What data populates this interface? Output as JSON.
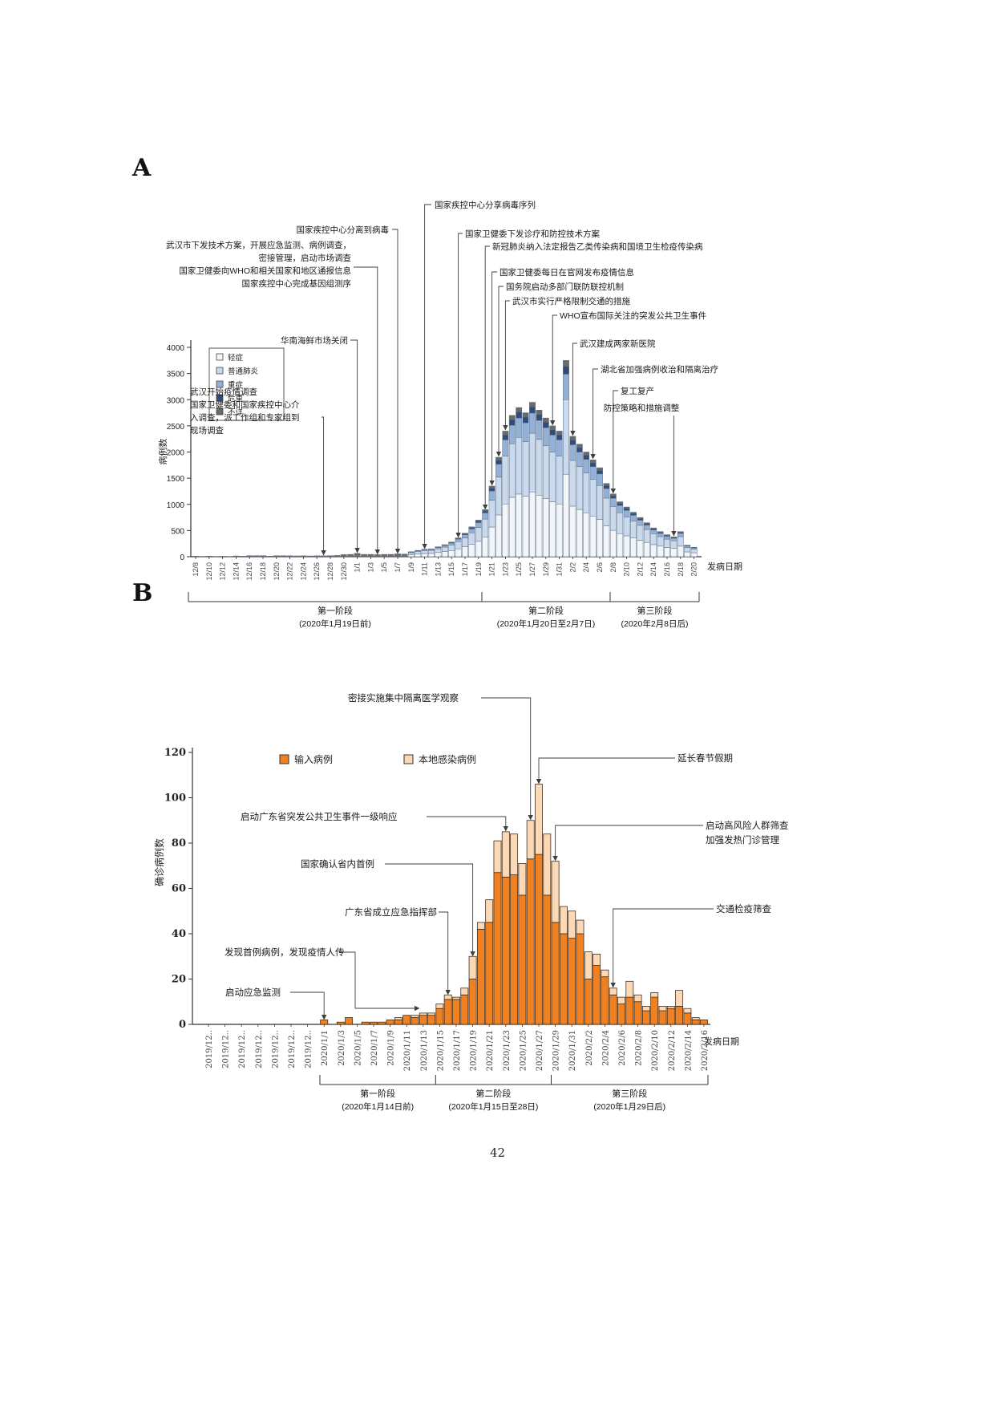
{
  "page": {
    "number": "42",
    "panel_a_label": "A",
    "panel_b_label": "B"
  },
  "chart_data": [
    {
      "id": "panel-a",
      "type": "bar",
      "stacked": true,
      "title": "",
      "ylabel": "病例数",
      "xlabel": "发病日期",
      "ylim": [
        0,
        4000
      ],
      "ytick_step": 500,
      "grid": false,
      "legend_position": "inside-top-left",
      "categories": [
        "12/8",
        "12/9",
        "12/10",
        "12/11",
        "12/12",
        "12/13",
        "12/14",
        "12/15",
        "12/16",
        "12/17",
        "12/18",
        "12/19",
        "12/20",
        "12/21",
        "12/22",
        "12/23",
        "12/24",
        "12/25",
        "12/26",
        "12/27",
        "12/28",
        "12/29",
        "12/30",
        "12/31",
        "1/1",
        "1/2",
        "1/3",
        "1/4",
        "1/5",
        "1/6",
        "1/7",
        "1/8",
        "1/9",
        "1/10",
        "1/11",
        "1/12",
        "1/13",
        "1/14",
        "1/15",
        "1/16",
        "1/17",
        "1/18",
        "1/19",
        "1/20",
        "1/21",
        "1/22",
        "1/23",
        "1/24",
        "1/25",
        "1/26",
        "1/27",
        "1/28",
        "1/29",
        "1/30",
        "1/31",
        "2/1",
        "2/2",
        "2/3",
        "2/4",
        "2/5",
        "2/6",
        "2/7",
        "2/8",
        "2/9",
        "2/10",
        "2/11",
        "2/12",
        "2/13",
        "2/14",
        "2/15",
        "2/16",
        "2/17",
        "2/18",
        "2/19",
        "2/20"
      ],
      "series": [
        {
          "name": "轻症",
          "color": "#f2f6fb",
          "values": [
            0,
            0,
            0,
            0,
            0,
            0,
            0,
            0,
            0,
            0,
            0,
            0,
            0,
            0,
            0,
            0,
            0,
            0,
            0,
            0,
            0,
            0,
            0,
            0,
            0,
            0,
            0,
            0,
            0,
            0,
            0,
            0,
            40,
            50,
            61,
            63,
            80,
            97,
            118,
            151,
            189,
            239,
            294,
            378,
            567,
            798,
            1008,
            1134,
            1197,
            1155,
            1239,
            1176,
            1113,
            1050,
            1008,
            1575,
            966,
            903,
            840,
            777,
            714,
            588,
            504,
            441,
            399,
            357,
            315,
            273,
            231,
            202,
            176,
            160,
            202,
            92,
            76
          ]
        },
        {
          "name": "普通肺炎",
          "color": "#c9d9ee",
          "values": [
            0,
            0,
            0,
            0,
            0,
            0,
            0,
            0,
            0,
            0,
            0,
            0,
            0,
            0,
            0,
            0,
            0,
            0,
            0,
            0,
            0,
            0,
            0,
            0,
            0,
            0,
            0,
            0,
            0,
            0,
            0,
            0,
            36,
            46,
            55,
            57,
            72,
            87,
            106,
            137,
            171,
            217,
            266,
            342,
            513,
            722,
            912,
            1026,
            1083,
            1045,
            1121,
            1064,
            1007,
            950,
            912,
            1425,
            874,
            817,
            760,
            703,
            646,
            532,
            456,
            399,
            361,
            323,
            285,
            247,
            209,
            182,
            160,
            144,
            182,
            84,
            68
          ]
        },
        {
          "name": "重症",
          "color": "#93b1d7",
          "values": [
            0,
            0,
            0,
            0,
            0,
            0,
            0,
            0,
            0,
            0,
            0,
            0,
            0,
            0,
            0,
            0,
            0,
            0,
            0,
            0,
            0,
            0,
            0,
            0,
            0,
            0,
            0,
            0,
            0,
            0,
            0,
            0,
            12,
            16,
            19,
            20,
            25,
            30,
            36,
            47,
            59,
            74,
            91,
            117,
            176,
            247,
            312,
            351,
            371,
            358,
            384,
            364,
            345,
            325,
            312,
            488,
            299,
            280,
            260,
            241,
            221,
            182,
            156,
            137,
            124,
            111,
            98,
            85,
            72,
            62,
            55,
            49,
            62,
            29,
            23
          ]
        },
        {
          "name": "危重",
          "color": "#2f4c7c",
          "values": [
            0,
            0,
            0,
            0,
            0,
            0,
            0,
            0,
            0,
            0,
            0,
            0,
            0,
            0,
            0,
            0,
            0,
            0,
            0,
            0,
            0,
            0,
            0,
            0,
            0,
            0,
            0,
            0,
            0,
            0,
            0,
            0,
            4,
            5,
            6,
            6,
            8,
            9,
            11,
            14,
            18,
            23,
            28,
            36,
            54,
            76,
            96,
            108,
            114,
            110,
            118,
            112,
            106,
            100,
            96,
            150,
            92,
            86,
            80,
            74,
            68,
            56,
            48,
            42,
            38,
            34,
            30,
            26,
            22,
            19,
            17,
            15,
            19,
            9,
            7
          ]
        },
        {
          "name": "不详",
          "color": "#6a6a6a",
          "values": [
            10,
            5,
            12,
            5,
            8,
            5,
            15,
            10,
            20,
            20,
            20,
            12,
            20,
            20,
            18,
            15,
            18,
            15,
            18,
            18,
            20,
            25,
            40,
            45,
            65,
            45,
            45,
            40,
            45,
            45,
            55,
            50,
            3,
            3,
            4,
            4,
            5,
            7,
            9,
            11,
            13,
            17,
            21,
            27,
            40,
            57,
            72,
            81,
            85,
            82,
            88,
            84,
            79,
            75,
            72,
            112,
            69,
            64,
            60,
            55,
            51,
            42,
            36,
            31,
            28,
            25,
            22,
            19,
            16,
            15,
            12,
            12,
            15,
            6,
            6
          ]
        }
      ],
      "annotations": [
        {
          "lines": [
            "国家疾控中心分享病毒序列"
          ],
          "anchor_date": "1/11"
        },
        {
          "lines": [
            "国家疾控中心分离到病毒"
          ],
          "anchor_date": "1/7"
        },
        {
          "lines": [
            "武汉市下发技术方案，开展应急监测、病例调查，",
            "密接管理，启动市场调查",
            "国家卫健委向WHO和相关国家和地区通报信息",
            "国家疾控中心完成基因组测序"
          ],
          "anchor_date": "1/4"
        },
        {
          "lines": [
            "华南海鲜市场关闭"
          ],
          "anchor_date": "1/1"
        },
        {
          "lines": [
            "武汉开始疫情调查",
            "国家卫健委和国家疾控中心介",
            "入调查，派工作组和专家组到",
            "现场调查"
          ],
          "anchor_date": "12/27"
        },
        {
          "lines": [
            "国家卫健委下发诊疗和防控技术方案"
          ],
          "anchor_date": "1/16"
        },
        {
          "lines": [
            "新冠肺炎纳入法定报告乙类传染病和国境卫生检疫传染病"
          ],
          "anchor_date": "1/20"
        },
        {
          "lines": [
            "国家卫健委每日在官网发布疫情信息"
          ],
          "anchor_date": "1/21"
        },
        {
          "lines": [
            "国务院启动多部门联防联控机制"
          ],
          "anchor_date": "1/22"
        },
        {
          "lines": [
            "武汉市实行严格限制交通的措施"
          ],
          "anchor_date": "1/23"
        },
        {
          "lines": [
            "WHO宣布国际关注的突发公共卫生事件"
          ],
          "anchor_date": "1/30"
        },
        {
          "lines": [
            "武汉建成两家新医院"
          ],
          "anchor_date": "2/2"
        },
        {
          "lines": [
            "湖北省加强病例收治和隔离治疗"
          ],
          "anchor_date": "2/5"
        },
        {
          "lines": [
            "复工复产"
          ],
          "anchor_date": "2/8"
        },
        {
          "lines": [
            "防控策略和措施调整"
          ],
          "anchor_date": "2/17"
        }
      ],
      "phases": [
        {
          "label": "第一阶段",
          "range": "(2020年1月19日前)"
        },
        {
          "label": "第二阶段",
          "range": "(2020年1月20日至2月7日)"
        },
        {
          "label": "第三阶段",
          "range": "(2020年2月8日后)"
        }
      ]
    },
    {
      "id": "panel-b",
      "type": "bar",
      "stacked": true,
      "title": "",
      "ylabel": "确诊病例数",
      "xlabel": "发病日期",
      "ylim": [
        0,
        120
      ],
      "ytick_step": 20,
      "grid": false,
      "legend_position": "top",
      "categories": [
        "12/18",
        "12/19",
        "12/20",
        "12/21",
        "12/22",
        "12/23",
        "12/24",
        "12/25",
        "12/26",
        "12/27",
        "12/28",
        "12/29",
        "12/30",
        "12/31",
        "1/1",
        "1/2",
        "1/3",
        "1/4",
        "1/5",
        "1/6",
        "1/7",
        "1/8",
        "1/9",
        "1/10",
        "1/11",
        "1/12",
        "1/13",
        "1/14",
        "1/15",
        "1/16",
        "1/17",
        "1/18",
        "1/19",
        "1/20",
        "1/21",
        "1/22",
        "1/23",
        "1/24",
        "1/25",
        "1/26",
        "1/27",
        "1/28",
        "1/29",
        "1/30",
        "1/31",
        "2/1",
        "2/2",
        "2/3",
        "2/4",
        "2/5",
        "2/6",
        "2/7",
        "2/8",
        "2/9",
        "2/10",
        "2/11",
        "2/12",
        "2/13",
        "2/14",
        "2/15",
        "2/16"
      ],
      "tick_labels": [
        "2019/12..",
        "2019/12..",
        "2019/12..",
        "2019/12..",
        "2019/12..",
        "2019/12..",
        "2019/12..",
        "2020/1/1",
        "2020/1/3",
        "2020/1/5",
        "2020/1/7",
        "2020/1/9",
        "2020/1/11",
        "2020/1/13",
        "2020/1/15",
        "2020/1/17",
        "2020/1/19",
        "2020/1/21",
        "2020/1/23",
        "2020/1/25",
        "2020/1/27",
        "2020/1/29",
        "2020/1/31",
        "2020/2/2",
        "2020/2/4",
        "2020/2/6",
        "2020/2/8",
        "2020/2/10",
        "2020/2/12",
        "2020/2/14",
        "2020/2/16"
      ],
      "series": [
        {
          "name": "输入病例",
          "color": "#f08122",
          "values": [
            0,
            0,
            0,
            0,
            0,
            0,
            0,
            0,
            0,
            0,
            0,
            0,
            0,
            0,
            2,
            0,
            1,
            3,
            0,
            1,
            1,
            1,
            2,
            2,
            4,
            3,
            4,
            4,
            7,
            11,
            11,
            13,
            20,
            42,
            45,
            67,
            65,
            66,
            57,
            73,
            75,
            57,
            45,
            40,
            38,
            40,
            20,
            26,
            21,
            13,
            9,
            12,
            10,
            6,
            12,
            6,
            7,
            8,
            5,
            2,
            2
          ]
        },
        {
          "name": "本地感染病例",
          "color": "#fbd9b6",
          "values": [
            0,
            0,
            0,
            0,
            0,
            0,
            0,
            0,
            0,
            0,
            0,
            0,
            0,
            0,
            0,
            0,
            0,
            0,
            0,
            0,
            0,
            0,
            0,
            1,
            0,
            1,
            1,
            1,
            2,
            2,
            1,
            3,
            10,
            3,
            10,
            14,
            20,
            18,
            14,
            17,
            31,
            27,
            27,
            12,
            12,
            6,
            12,
            5,
            3,
            3,
            3,
            7,
            3,
            2,
            2,
            2,
            1,
            7,
            2,
            1,
            0
          ]
        }
      ],
      "annotations": [
        {
          "lines": [
            "启动应急监测"
          ],
          "anchor_date": "1/1"
        },
        {
          "lines": [
            "发现首例病例，发现疫情人传"
          ],
          "anchor_date": "1/13"
        },
        {
          "lines": [
            "广东省成立应急指挥部"
          ],
          "anchor_date": "1/16"
        },
        {
          "lines": [
            "国家确认省内首例"
          ],
          "anchor_date": "1/19"
        },
        {
          "lines": [
            "启动广东省突发公共卫生事件一级响应"
          ],
          "anchor_date": "1/23"
        },
        {
          "lines": [
            "密接实施集中隔离医学观察"
          ],
          "anchor_date": "1/26"
        },
        {
          "lines": [
            "延长春节假期"
          ],
          "anchor_date": "1/27"
        },
        {
          "lines": [
            "启动高风险人群筛查",
            "加强发热门诊管理"
          ],
          "anchor_date": "1/29"
        },
        {
          "lines": [
            "交通检疫筛查"
          ],
          "anchor_date": "2/5"
        }
      ],
      "phases": [
        {
          "label": "第一阶段",
          "range": "(2020年1月14日前)"
        },
        {
          "label": "第二阶段",
          "range": "(2020年1月15日至28日)"
        },
        {
          "label": "第三阶段",
          "range": "(2020年1月29日后)"
        }
      ]
    }
  ]
}
